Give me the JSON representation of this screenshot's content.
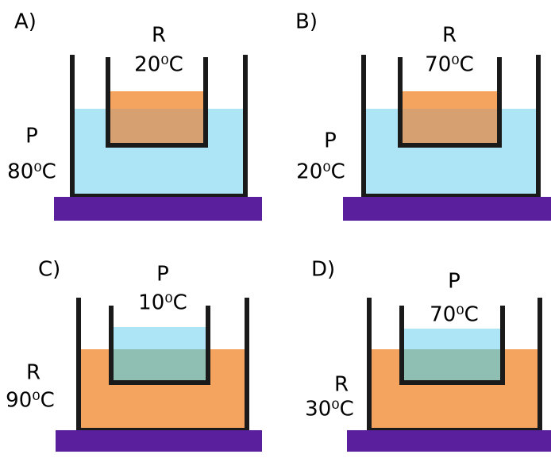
{
  "panels": [
    {
      "label": "A)",
      "inner_name": "R",
      "inner_temp": "20⁰C",
      "outer_name": "P",
      "outer_temp": "80⁰C"
    },
    {
      "label": "B)",
      "inner_name": "R",
      "inner_temp": "70⁰C",
      "outer_name": "P",
      "outer_temp": "20⁰C"
    },
    {
      "label": "C)",
      "inner_name": "P",
      "inner_temp": "10⁰C",
      "outer_name": "R",
      "outer_temp": "90⁰C"
    },
    {
      "label": "D)",
      "inner_name": "P",
      "inner_temp": "70⁰C",
      "outer_name": "R",
      "outer_temp": "30⁰C"
    }
  ]
}
